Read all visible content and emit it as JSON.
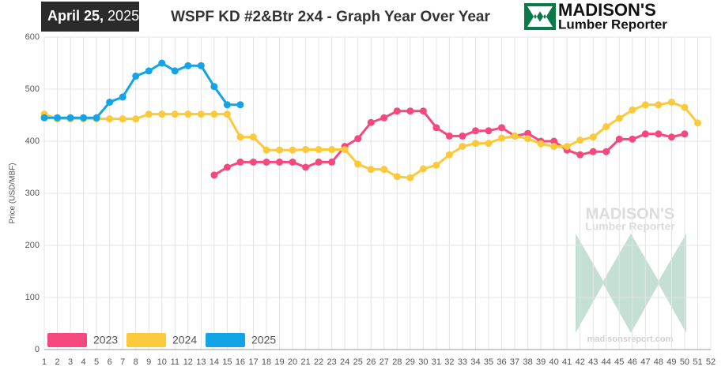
{
  "date_day": "April 25,",
  "date_year": "2025",
  "logo": {
    "name": "MADISON'S",
    "subtitle": "Lumber Reporter"
  },
  "watermark": {
    "name": "MADISON'S",
    "subtitle": "Lumber Reporter",
    "url": "madisonsreport.com"
  },
  "chart_data": {
    "type": "line",
    "title": "WSPF KD #2&Btr 2x4 - Graph Year Over Year",
    "y_label": "Price (USD/MBF)",
    "categories": [
      "1",
      "2",
      "3",
      "4",
      "5",
      "6",
      "7",
      "8",
      "9",
      "10",
      "11",
      "12",
      "13",
      "14",
      "15",
      "16",
      "17",
      "18",
      "19",
      "20",
      "21",
      "22",
      "23",
      "24",
      "25",
      "26",
      "27",
      "28",
      "29",
      "30",
      "31",
      "32",
      "33",
      "34",
      "35",
      "36",
      "37",
      "38",
      "39",
      "40",
      "41",
      "42",
      "43",
      "44",
      "45",
      "46",
      "47",
      "48",
      "49",
      "50",
      "51",
      "52"
    ],
    "ylim": [
      0,
      600
    ],
    "yticks": [
      0,
      100,
      200,
      300,
      400,
      500,
      600
    ],
    "grid": true,
    "legend": "bottom-left",
    "series": [
      {
        "name": "2023",
        "color": "#f5487f",
        "values": [
          null,
          null,
          null,
          null,
          null,
          null,
          null,
          null,
          null,
          null,
          null,
          null,
          null,
          335,
          350,
          360,
          360,
          360,
          360,
          360,
          350,
          360,
          360,
          390,
          405,
          436,
          445,
          458,
          458,
          458,
          426,
          410,
          410,
          420,
          420,
          426,
          410,
          415,
          400,
          400,
          383,
          374,
          380,
          380,
          404,
          404,
          414,
          414,
          408,
          414,
          null,
          null
        ]
      },
      {
        "name": "2024",
        "color": "#fcc93a",
        "values": [
          452,
          443,
          443,
          443,
          443,
          443,
          443,
          443,
          452,
          452,
          452,
          452,
          452,
          452,
          452,
          408,
          408,
          383,
          383,
          383,
          384,
          384,
          384,
          384,
          356,
          346,
          346,
          332,
          330,
          347,
          354,
          374,
          390,
          396,
          396,
          406,
          410,
          405,
          395,
          390,
          390,
          402,
          408,
          428,
          444,
          460,
          470,
          470,
          475,
          465,
          435,
          null
        ]
      },
      {
        "name": "2025",
        "color": "#12a4e6",
        "values": [
          445,
          445,
          445,
          445,
          445,
          475,
          485,
          525,
          535,
          550,
          535,
          545,
          545,
          505,
          470,
          470,
          null,
          null,
          null,
          null,
          null,
          null,
          null,
          null,
          null,
          null,
          null,
          null,
          null,
          null,
          null,
          null,
          null,
          null,
          null,
          null,
          null,
          null,
          null,
          null,
          null,
          null,
          null,
          null,
          null,
          null,
          null,
          null,
          null,
          null,
          null,
          null
        ]
      }
    ]
  }
}
